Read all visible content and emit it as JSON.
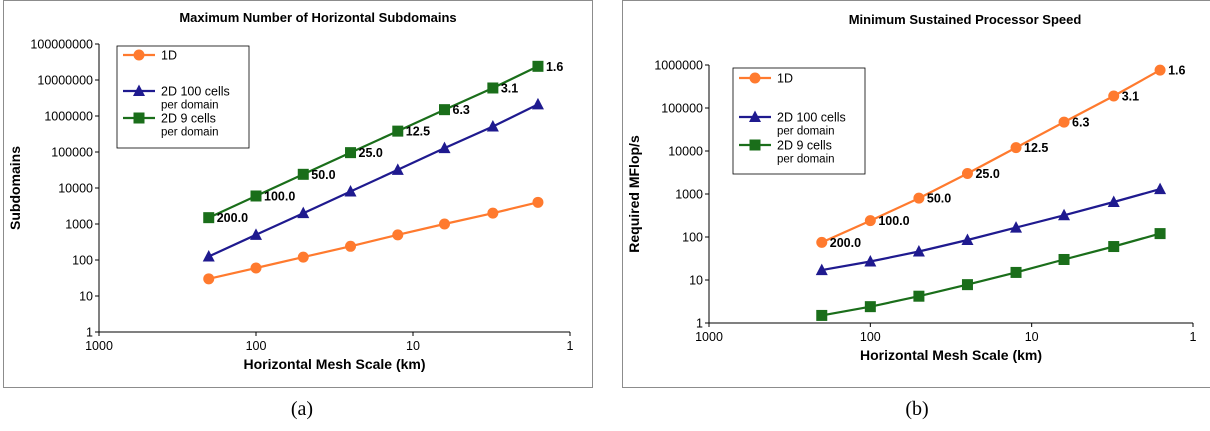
{
  "captions": [
    "(a)",
    "(b)"
  ],
  "colors": {
    "series_1d": "#ff7a2e",
    "series_2d100": "#1f1a8f",
    "series_2d9": "#1a6e1a",
    "axis": "#000000",
    "frame": "#8c8c8c"
  },
  "chart_data": [
    {
      "type": "line",
      "title": "Maximum Number of Horizontal Subdomains",
      "xlabel": "Horizontal Mesh Scale (km)",
      "ylabel": "Subdomains",
      "xscale": "log",
      "xreversed": true,
      "xlim": [
        1000,
        1
      ],
      "xticks": [
        "1000",
        "100",
        "10",
        "1"
      ],
      "yscale": "log",
      "ylim": [
        1,
        100000000
      ],
      "yticks": [
        "1",
        "10",
        "100",
        "1000",
        "10000",
        "100000",
        "1000000",
        "10000000",
        "100000000"
      ],
      "legend": "top-left",
      "x": [
        200,
        100,
        50,
        25,
        12.5,
        6.3,
        3.1,
        1.6
      ],
      "point_labels": [
        "200.0",
        "100.0",
        "50.0",
        "25.0",
        "12.5",
        "6.3",
        "3.1",
        "1.6"
      ],
      "point_labels_series": 2,
      "series": [
        {
          "name": "1D",
          "marker": "circle",
          "values": [
            30,
            60,
            120,
            240,
            500,
            1000,
            2000,
            4000
          ]
        },
        {
          "name": "2D 100 cells per domain",
          "legend_lines": [
            "2D 100 cells",
            "per domain"
          ],
          "marker": "triangle",
          "values": [
            125,
            500,
            2000,
            8000,
            32000,
            128000,
            512000,
            2100000
          ]
        },
        {
          "name": "2D 9 cells per domain",
          "legend_lines": [
            "2D 9 cells",
            "per domain"
          ],
          "marker": "square",
          "values": [
            1500,
            6000,
            24000,
            96000,
            380000,
            1500000,
            6000000,
            24000000
          ]
        }
      ]
    },
    {
      "type": "line",
      "title": "Minimum Sustained Processor Speed",
      "xlabel": "Horizontal Mesh Scale (km)",
      "ylabel": "Required MFlop/s",
      "xscale": "log",
      "xreversed": true,
      "xlim": [
        1000,
        1
      ],
      "xticks": [
        "1000",
        "100",
        "10",
        "1"
      ],
      "yscale": "log",
      "ylim": [
        1,
        1000000
      ],
      "yticks": [
        "1",
        "10",
        "100",
        "1000",
        "10000",
        "100000",
        "1000000"
      ],
      "legend": "top-left",
      "x": [
        200,
        100,
        50,
        25,
        12.5,
        6.3,
        3.1,
        1.6
      ],
      "point_labels": [
        "200.0",
        "100.0",
        "50.0",
        "25.0",
        "12.5",
        "6.3",
        "3.1",
        "1.6"
      ],
      "point_labels_series": 0,
      "series": [
        {
          "name": "1D",
          "marker": "circle",
          "values": [
            75,
            240,
            800,
            3000,
            12000,
            47000,
            190000,
            760000
          ]
        },
        {
          "name": "2D 100 cells per domain",
          "legend_lines": [
            "2D 100 cells",
            "per domain"
          ],
          "marker": "triangle",
          "values": [
            17,
            27,
            46,
            85,
            165,
            320,
            650,
            1300
          ]
        },
        {
          "name": "2D 9 cells per domain",
          "legend_lines": [
            "2D 9 cells",
            "per domain"
          ],
          "marker": "square",
          "values": [
            1.5,
            2.4,
            4.2,
            7.8,
            15,
            30,
            60,
            120
          ]
        }
      ]
    }
  ]
}
